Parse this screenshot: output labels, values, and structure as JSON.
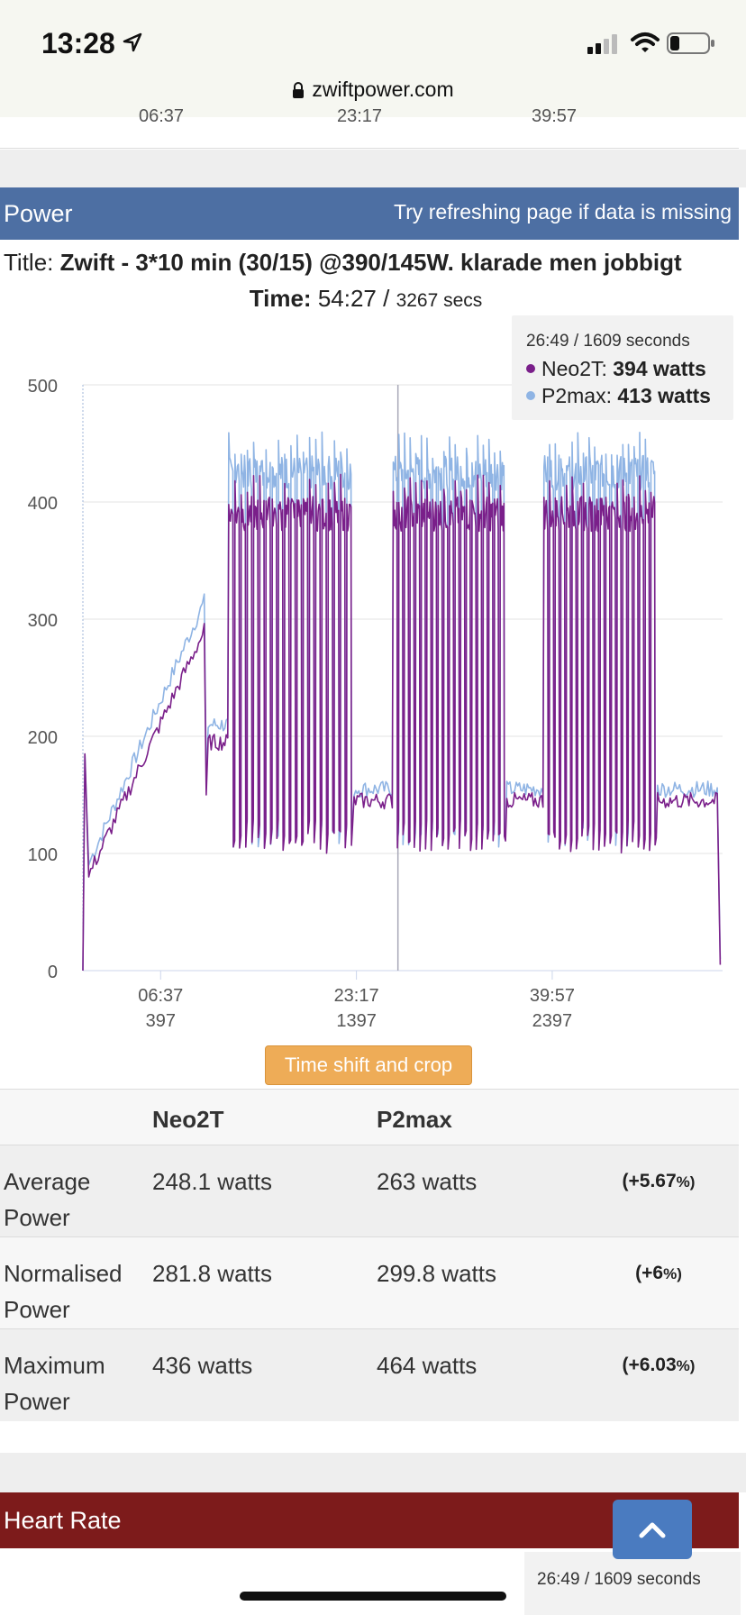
{
  "status_bar": {
    "time": "13:28"
  },
  "browser": {
    "url": "zwiftpower.com"
  },
  "prev_card": {
    "ticks": [
      "06:37",
      "23:17",
      "39:57"
    ]
  },
  "power": {
    "section_title": "Power",
    "hint": "Try refreshing page if data is missing",
    "title_label": "Title:",
    "title_value": "Zwift - 3*10 min (30/15) @390/145W. klarade men jobbigt",
    "time_label": "Time:",
    "time_value": "54:27 /",
    "time_secs": "3267 secs",
    "legend": {
      "header": "26:49 / 1609 seconds",
      "rows": [
        {
          "name": "Neo2T:",
          "value": "394 watts",
          "color": "#7a1f8a"
        },
        {
          "name": "P2max:",
          "value": "413 watts",
          "color": "#8fb4e4"
        }
      ]
    },
    "time_shift_label": "Time shift and crop"
  },
  "chart_data": {
    "type": "line",
    "x_unit": "seconds",
    "xlim": [
      0,
      3267
    ],
    "ylim": [
      0,
      500
    ],
    "y_ticks": [
      0,
      100,
      200,
      300,
      400,
      500
    ],
    "x_ticks": [
      {
        "value": 397,
        "time": "06:37",
        "secs": "397"
      },
      {
        "value": 1397,
        "time": "23:17",
        "secs": "1397"
      },
      {
        "value": 2397,
        "time": "39:57",
        "secs": "2397"
      }
    ],
    "crosshair_x": 1609,
    "series": [
      {
        "name": "Neo2T",
        "color": "#7a1f8a",
        "segments": [
          {
            "kind": "point",
            "t": 0,
            "v": 0
          },
          {
            "kind": "point",
            "t": 10,
            "v": 185
          },
          {
            "kind": "point",
            "t": 30,
            "v": 80
          },
          {
            "kind": "ramp",
            "from_t": 40,
            "to_t": 620,
            "from_v": 85,
            "to_v": 290
          },
          {
            "kind": "point",
            "t": 630,
            "v": 150
          },
          {
            "kind": "steady",
            "from_t": 640,
            "to_t": 740,
            "v": 195
          },
          {
            "kind": "intervals",
            "from_t": 745,
            "to_t": 1380,
            "count": 20,
            "on_v": 390,
            "off_v": 110
          },
          {
            "kind": "steady",
            "from_t": 1385,
            "to_t": 1580,
            "v": 145
          },
          {
            "kind": "intervals",
            "from_t": 1585,
            "to_t": 2160,
            "count": 20,
            "on_v": 390,
            "off_v": 110
          },
          {
            "kind": "steady",
            "from_t": 2165,
            "to_t": 2350,
            "v": 145
          },
          {
            "kind": "intervals",
            "from_t": 2355,
            "to_t": 2930,
            "count": 20,
            "on_v": 390,
            "off_v": 110
          },
          {
            "kind": "steady",
            "from_t": 2935,
            "to_t": 3240,
            "v": 145
          },
          {
            "kind": "point",
            "t": 3255,
            "v": 5
          }
        ]
      },
      {
        "name": "P2max",
        "color": "#8fb4e4",
        "segments": [
          {
            "kind": "point",
            "t": 0,
            "v": 0
          },
          {
            "kind": "point",
            "t": 10,
            "v": 185
          },
          {
            "kind": "point",
            "t": 30,
            "v": 90
          },
          {
            "kind": "ramp",
            "from_t": 40,
            "to_t": 620,
            "from_v": 95,
            "to_v": 315
          },
          {
            "kind": "point",
            "t": 630,
            "v": 165
          },
          {
            "kind": "steady",
            "from_t": 640,
            "to_t": 740,
            "v": 210
          },
          {
            "kind": "intervals",
            "from_t": 745,
            "to_t": 1380,
            "count": 20,
            "on_v": 425,
            "off_v": 115
          },
          {
            "kind": "steady",
            "from_t": 1385,
            "to_t": 1580,
            "v": 155
          },
          {
            "kind": "intervals",
            "from_t": 1585,
            "to_t": 2160,
            "count": 20,
            "on_v": 425,
            "off_v": 115
          },
          {
            "kind": "steady",
            "from_t": 2165,
            "to_t": 2350,
            "v": 155
          },
          {
            "kind": "intervals",
            "from_t": 2355,
            "to_t": 2930,
            "count": 20,
            "on_v": 425,
            "off_v": 115
          },
          {
            "kind": "steady",
            "from_t": 2935,
            "to_t": 3240,
            "v": 155
          },
          {
            "kind": "point",
            "t": 3255,
            "v": 10
          }
        ]
      }
    ]
  },
  "stats": {
    "headers": [
      "",
      "Neo2T",
      "P2max",
      ""
    ],
    "rows": [
      {
        "label_1": "Average",
        "label_2": "Power",
        "neo": "248.1 watts",
        "p2": "263 watts",
        "pct": "(+5.67",
        "pct_sign": "%)"
      },
      {
        "label_1": "Normalised",
        "label_2": "Power",
        "neo": "281.8 watts",
        "p2": "299.8 watts",
        "pct": "(+6",
        "pct_sign": "%)"
      },
      {
        "label_1": "Maximum",
        "label_2": "Power",
        "neo": "436 watts",
        "p2": "464 watts",
        "pct": "(+6.03",
        "pct_sign": "%)"
      }
    ]
  },
  "heart_rate": {
    "section_title": "Heart Rate",
    "legend_header": "26:49 / 1609 seconds"
  }
}
